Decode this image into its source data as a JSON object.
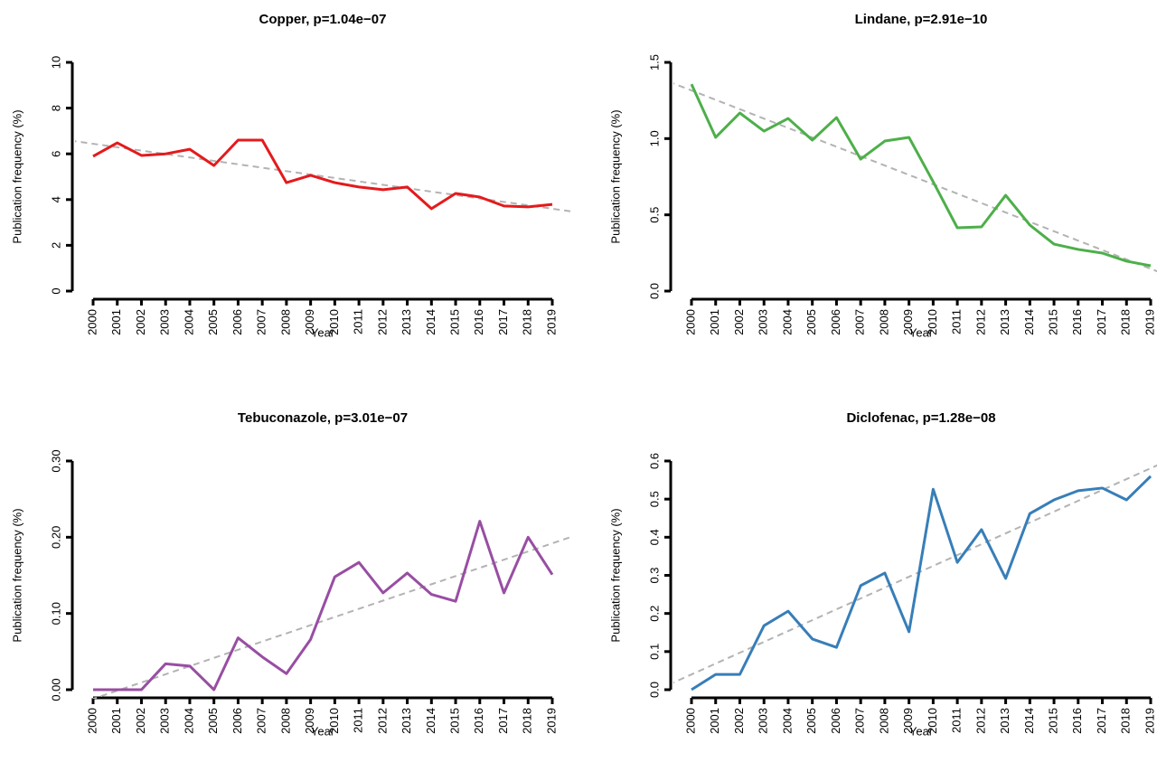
{
  "chart_data": [
    {
      "type": "line",
      "title": "Copper, p=1.04e−07",
      "xlabel": "Year",
      "ylabel": "Publication frequency (%)",
      "x": [
        2000,
        2001,
        2002,
        2003,
        2004,
        2005,
        2006,
        2007,
        2008,
        2009,
        2010,
        2011,
        2012,
        2013,
        2014,
        2015,
        2016,
        2017,
        2018,
        2019
      ],
      "xlim": [
        2000,
        2019
      ],
      "xticks": [
        2000,
        2001,
        2002,
        2003,
        2004,
        2005,
        2006,
        2007,
        2008,
        2009,
        2010,
        2011,
        2012,
        2013,
        2014,
        2015,
        2016,
        2017,
        2018,
        2019
      ],
      "ylim": [
        0,
        10
      ],
      "yticks": [
        0,
        2,
        4,
        6,
        8,
        10
      ],
      "series": [
        {
          "color": "#e41a1c",
          "values": [
            5.89,
            6.48,
            5.93,
            6.0,
            6.2,
            5.49,
            6.6,
            6.6,
            4.74,
            5.06,
            4.74,
            4.55,
            4.43,
            4.55,
            3.6,
            4.27,
            4.11,
            3.72,
            3.68,
            3.79
          ]
        }
      ],
      "trend": {
        "color": "#b3b3b3",
        "x": [
          2000,
          2019
        ],
        "values": [
          6.44,
          3.6
        ]
      }
    },
    {
      "type": "line",
      "title": "Lindane, p=2.91e−10",
      "xlabel": "Year",
      "ylabel": "Publication frequency (%)",
      "x": [
        2000,
        2001,
        2002,
        2003,
        2004,
        2005,
        2006,
        2007,
        2008,
        2009,
        2010,
        2011,
        2012,
        2013,
        2014,
        2015,
        2016,
        2017,
        2018,
        2019
      ],
      "xlim": [
        2000,
        2019
      ],
      "xticks": [
        2000,
        2001,
        2002,
        2003,
        2004,
        2005,
        2006,
        2007,
        2008,
        2009,
        2010,
        2011,
        2012,
        2013,
        2014,
        2015,
        2016,
        2017,
        2018,
        2019
      ],
      "ylim": [
        0,
        1.5
      ],
      "yticks": [
        {
          "value": 0,
          "label": "0.0"
        },
        {
          "value": 0.5,
          "label": "0.5"
        },
        {
          "value": 1,
          "label": "1.0"
        },
        {
          "value": 1.5,
          "label": "1.5"
        }
      ],
      "series": [
        {
          "color": "#4daf4a",
          "values": [
            1.357,
            1.008,
            1.168,
            1.049,
            1.132,
            0.99,
            1.138,
            0.865,
            0.984,
            1.008,
            0.717,
            0.415,
            0.421,
            0.628,
            0.433,
            0.308,
            0.273,
            0.249,
            0.196,
            0.166
          ]
        }
      ],
      "trend": {
        "color": "#b3b3b3",
        "x": [
          2000,
          2019
        ],
        "values": [
          1.316,
          0.146
        ]
      }
    },
    {
      "type": "line",
      "title": "Tebuconazole, p=3.01e−07",
      "xlabel": "Year",
      "ylabel": "Publication frequency (%)",
      "x": [
        2000,
        2001,
        2002,
        2003,
        2004,
        2005,
        2006,
        2007,
        2008,
        2009,
        2010,
        2011,
        2012,
        2013,
        2014,
        2015,
        2016,
        2017,
        2018,
        2019
      ],
      "xlim": [
        2000,
        2019
      ],
      "xticks": [
        2000,
        2001,
        2002,
        2003,
        2004,
        2005,
        2006,
        2007,
        2008,
        2009,
        2010,
        2011,
        2012,
        2013,
        2014,
        2015,
        2016,
        2017,
        2018,
        2019
      ],
      "ylim": [
        0,
        0.3
      ],
      "yticks": [
        {
          "value": 0,
          "label": "0.00"
        },
        {
          "value": 0.1,
          "label": "0.10"
        },
        {
          "value": 0.2,
          "label": "0.20"
        },
        {
          "value": 0.3,
          "label": "0.30"
        }
      ],
      "series": [
        {
          "color": "#984ea3",
          "values": [
            0,
            0,
            0,
            0.034,
            0.031,
            0,
            0.068,
            0.043,
            0.021,
            0.066,
            0.148,
            0.167,
            0.127,
            0.153,
            0.125,
            0.116,
            0.221,
            0.127,
            0.2,
            0.151
          ]
        }
      ],
      "trend": {
        "color": "#b3b3b3",
        "x": [
          2000,
          2019
        ],
        "values": [
          -0.012,
          0.192
        ]
      }
    },
    {
      "type": "line",
      "title": "Diclofenac, p=1.28e−08",
      "xlabel": "Year",
      "ylabel": "Publication frequency (%)",
      "x": [
        2000,
        2001,
        2002,
        2003,
        2004,
        2005,
        2006,
        2007,
        2008,
        2009,
        2010,
        2011,
        2012,
        2013,
        2014,
        2015,
        2016,
        2017,
        2018,
        2019
      ],
      "xlim": [
        2000,
        2019
      ],
      "xticks": [
        2000,
        2001,
        2002,
        2003,
        2004,
        2005,
        2006,
        2007,
        2008,
        2009,
        2010,
        2011,
        2012,
        2013,
        2014,
        2015,
        2016,
        2017,
        2018,
        2019
      ],
      "ylim": [
        0,
        0.6
      ],
      "yticks": [
        {
          "value": 0,
          "label": "0.0"
        },
        {
          "value": 0.1,
          "label": "0.1"
        },
        {
          "value": 0.2,
          "label": "0.2"
        },
        {
          "value": 0.3,
          "label": "0.3"
        },
        {
          "value": 0.4,
          "label": "0.4"
        },
        {
          "value": 0.5,
          "label": "0.5"
        },
        {
          "value": 0.6,
          "label": "0.6"
        }
      ],
      "series": [
        {
          "color": "#377eb8",
          "values": [
            0,
            0.04,
            0.04,
            0.168,
            0.206,
            0.133,
            0.111,
            0.273,
            0.306,
            0.152,
            0.526,
            0.334,
            0.42,
            0.292,
            0.462,
            0.498,
            0.522,
            0.529,
            0.498,
            0.56
          ]
        }
      ],
      "trend": {
        "color": "#b3b3b3",
        "x": [
          2000,
          2019
        ],
        "values": [
          0.04,
          0.581
        ]
      }
    }
  ]
}
